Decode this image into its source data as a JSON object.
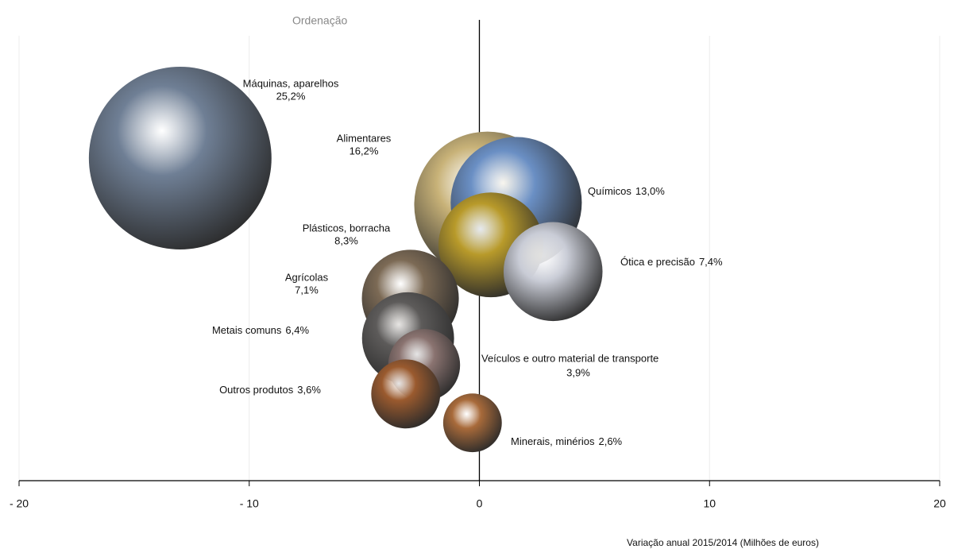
{
  "chart_data": {
    "type": "bubble",
    "title": "Ordenação",
    "x_label": "Variação anual 2015/2014  (Milhões de euros)",
    "xlim": [
      -20,
      20
    ],
    "xticks": [
      {
        "value": -20,
        "label": "- 20"
      },
      {
        "value": -10,
        "label": "- 10"
      },
      0,
      10,
      20
    ],
    "ylim": [
      0,
      10
    ],
    "grid": true,
    "series": [
      {
        "names": [
          "Máquinas, aparelhos",
          "Alimentares",
          "Químicos",
          "Plásticos, borracha",
          "Ótica e precisão",
          "Agrícolas",
          "Metais comuns",
          "Veículos e outro material de transporte",
          "Outros produtos",
          "Minerais, minérios"
        ],
        "x": [
          -13.0,
          0.35,
          1.6,
          0.5,
          3.2,
          -3.0,
          -3.1,
          -2.4,
          -3.2,
          -0.3
        ],
        "values": [
          7.25,
          6.2,
          6.25,
          5.3,
          4.7,
          4.1,
          3.2,
          2.6,
          1.95,
          1.3
        ],
        "sizes": [
          25.2,
          16.2,
          13.0,
          8.3,
          7.4,
          7.1,
          6.4,
          3.9,
          3.6,
          2.6
        ],
        "value_labels": [
          "25,2%",
          "16,2%",
          "13,0%",
          "8,3%",
          "7,4%",
          "7,1%",
          "6,4%",
          "3,9%",
          "3,6%",
          "2,6%"
        ],
        "colors": [
          "#6f7f95",
          "#c8b278",
          "#6a8fc4",
          "#b89a2a",
          "#c9ccd6",
          "#7c6a55",
          "#5d5b5a",
          "#8a7370",
          "#9a5a2e",
          "#a86a3a"
        ]
      }
    ]
  }
}
